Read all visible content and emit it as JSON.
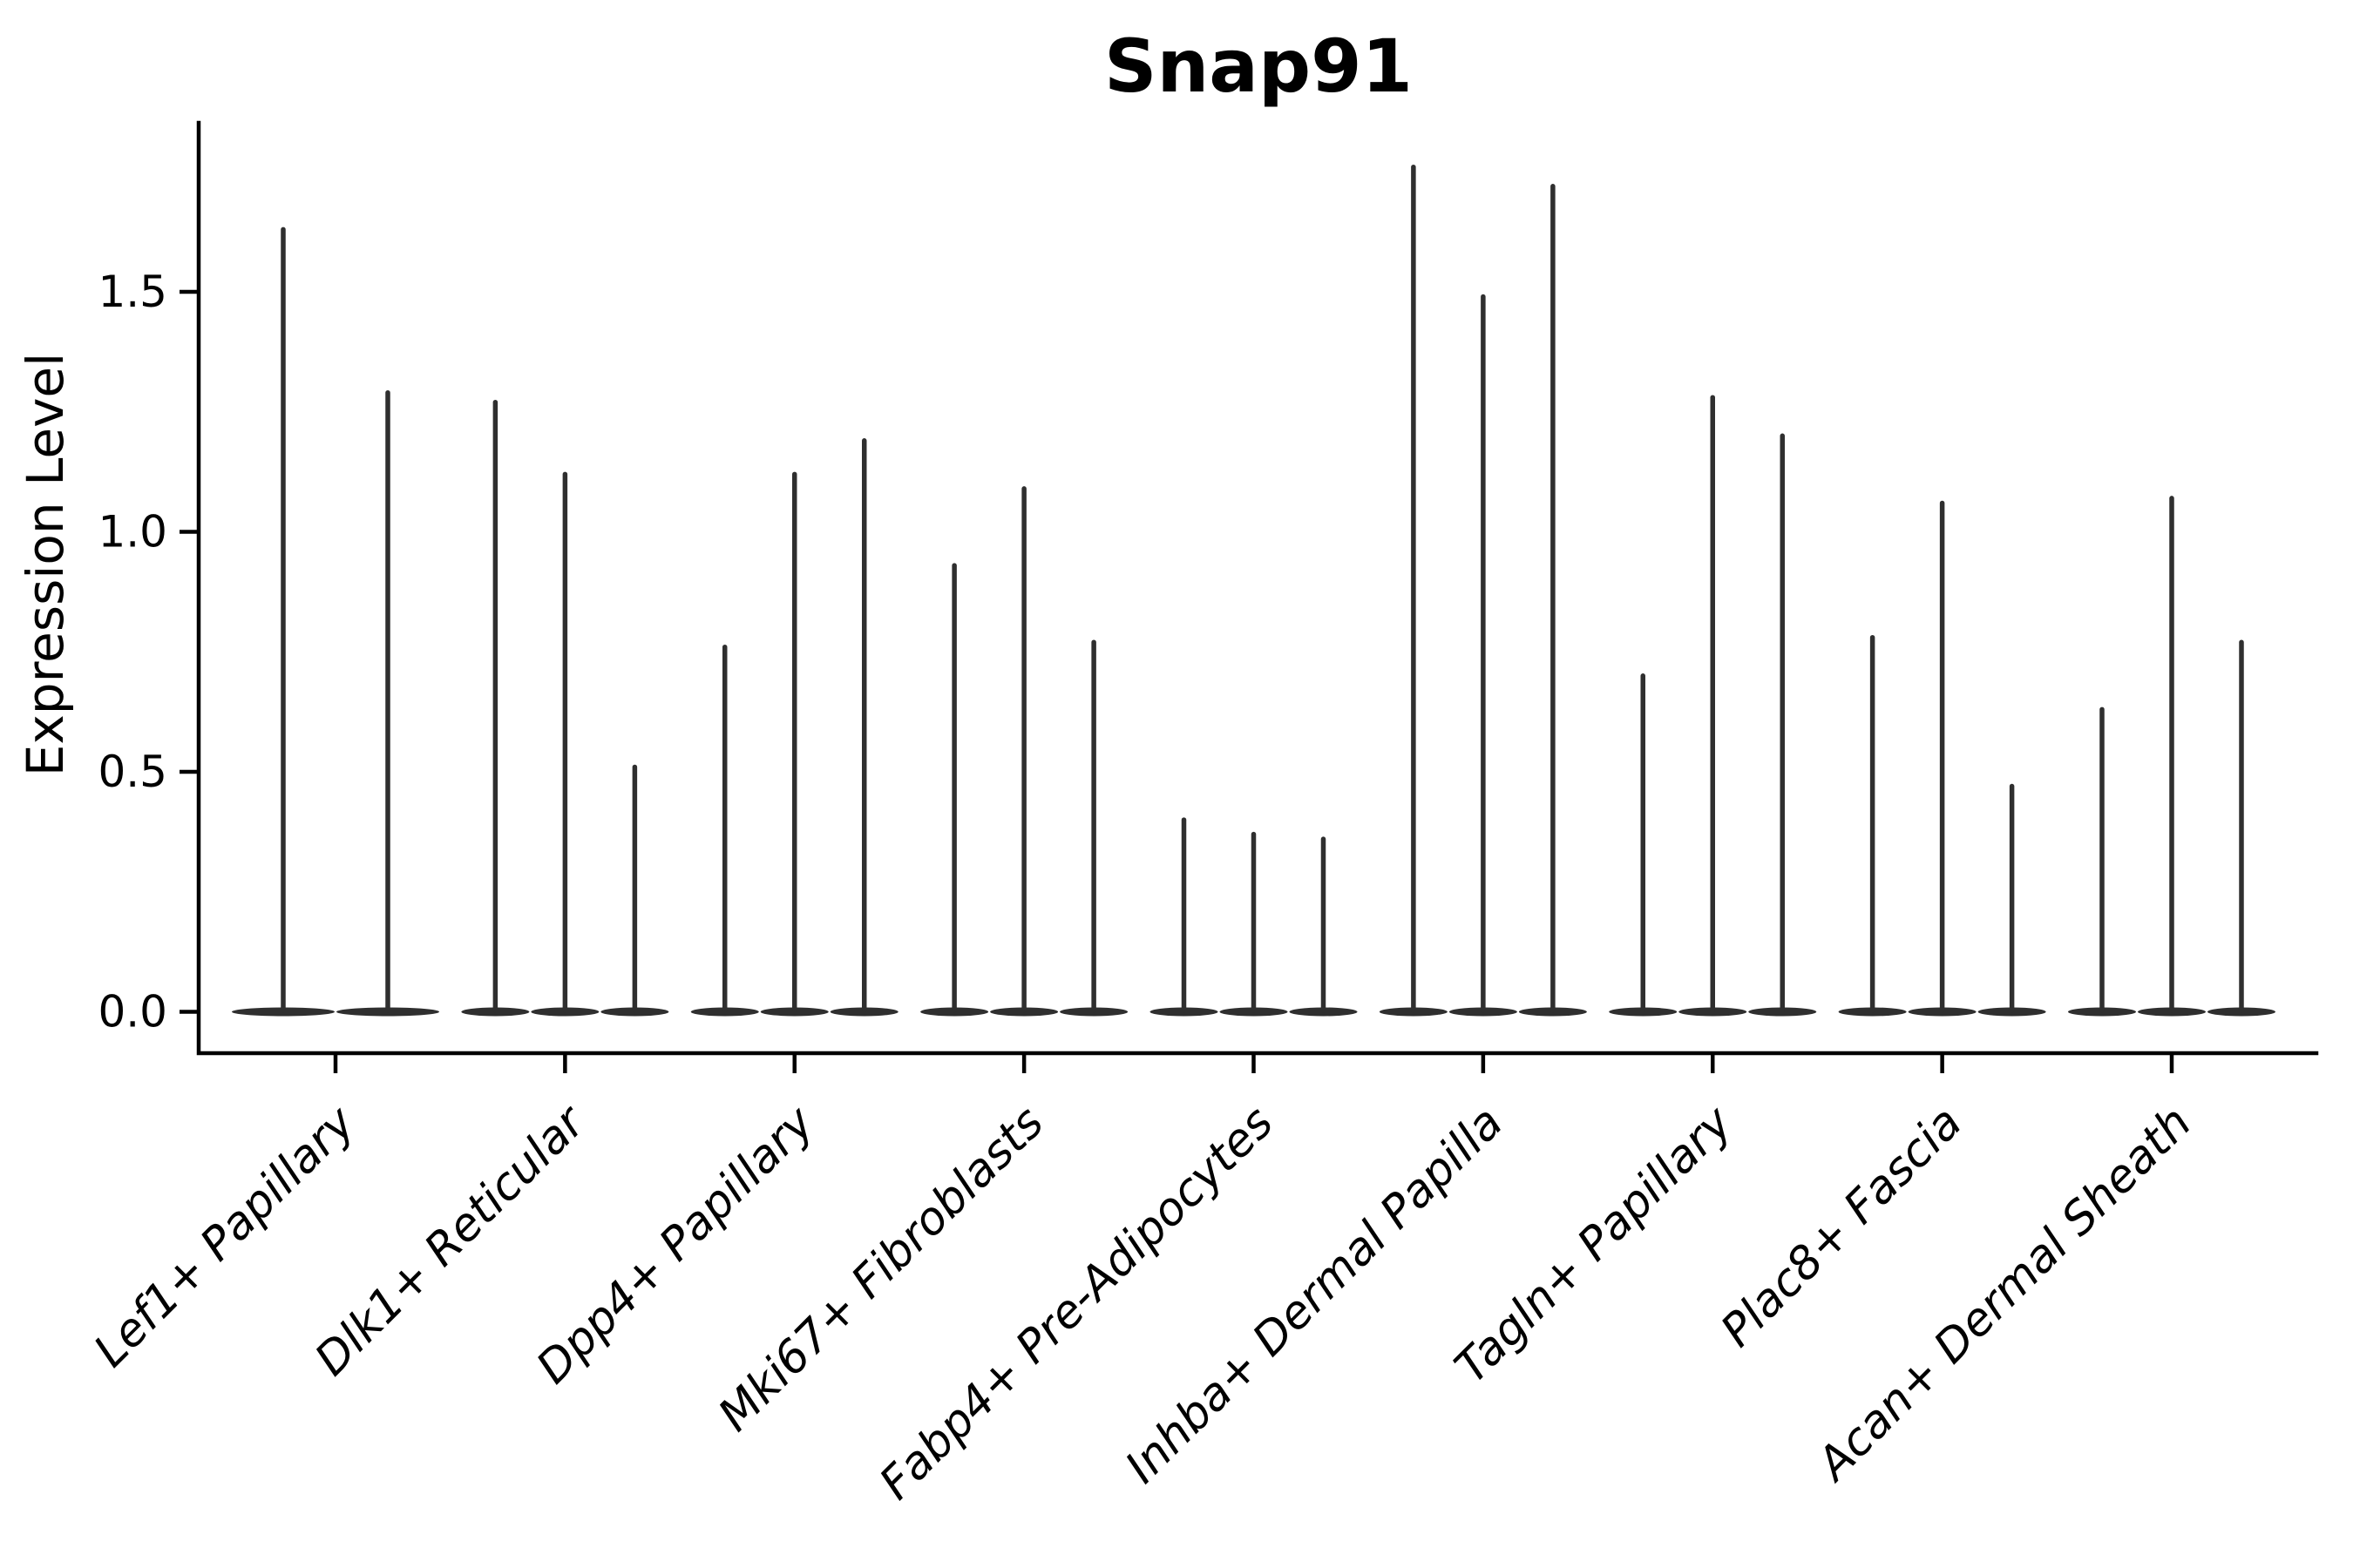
{
  "chart_data": {
    "type": "violin",
    "title": "Snap91",
    "ylabel": "Expression Level",
    "xlabel": "",
    "ytick_labels": [
      "0.0",
      "0.5",
      "1.0",
      "1.5"
    ],
    "ytick_values": [
      0.0,
      0.5,
      1.0,
      1.5
    ],
    "ylim": [
      -0.09,
      1.85
    ],
    "grid": false,
    "legend": "none",
    "violin_color": "#2f2f2f",
    "axis_color": "#000000",
    "categories": [
      "Lef1+ Papillary",
      "Dlk1+ Reticular",
      "Dpp4+ Papillary",
      "Mki67+ Fibroblasts",
      "Fabp4+ Pre-Adipocytes",
      "Inhba+ Dermal Papilla",
      "Tagln+ Papillary",
      "Plac8+ Fascia",
      "Acan+ Dermal Sheath"
    ],
    "series": [
      {
        "category": "Lef1+ Papillary",
        "violin_peaks": [
          1.63,
          1.29
        ]
      },
      {
        "category": "Dlk1+ Reticular",
        "violin_peaks": [
          1.27,
          1.12,
          0.51
        ]
      },
      {
        "category": "Dpp4+ Papillary",
        "violin_peaks": [
          0.76,
          1.12,
          1.19
        ]
      },
      {
        "category": "Mki67+ Fibroblasts",
        "violin_peaks": [
          0.93,
          1.09,
          0.77
        ]
      },
      {
        "category": "Fabp4+ Pre-Adipocytes",
        "violin_peaks": [
          0.4,
          0.37,
          0.36
        ]
      },
      {
        "category": "Inhba+ Dermal Papilla",
        "violin_peaks": [
          1.76,
          1.49,
          1.72
        ]
      },
      {
        "category": "Tagln+ Papillary",
        "violin_peaks": [
          0.7,
          1.28,
          1.2
        ]
      },
      {
        "category": "Plac8+ Fascia",
        "violin_peaks": [
          0.78,
          1.06,
          0.47
        ]
      },
      {
        "category": "Acan+ Dermal Sheath",
        "violin_peaks": [
          0.63,
          1.07,
          0.77
        ]
      }
    ]
  }
}
